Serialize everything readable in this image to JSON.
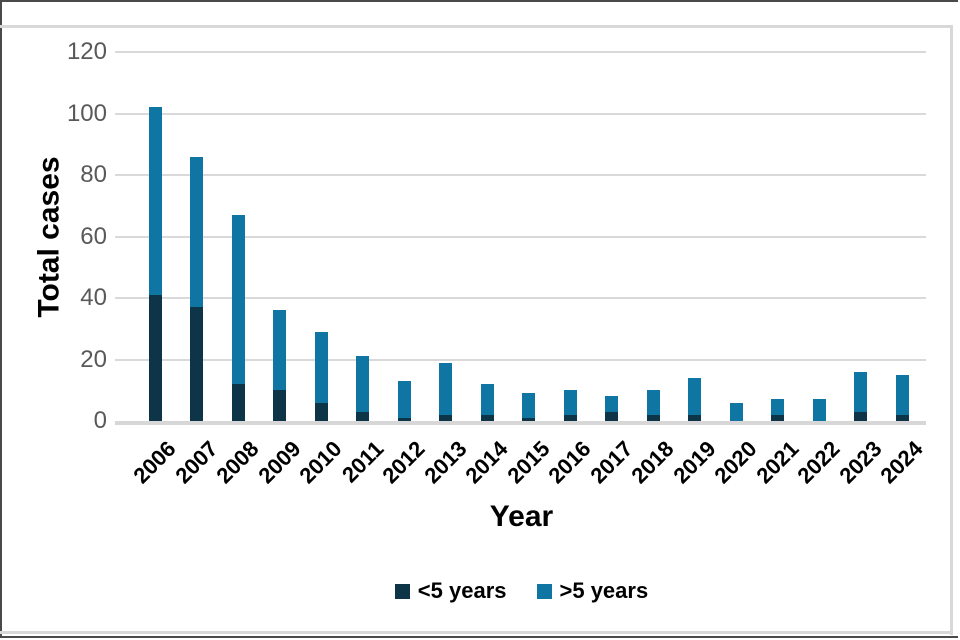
{
  "chart_data": {
    "type": "bar",
    "stacked": true,
    "xlabel": "Year",
    "ylabel": "Total cases",
    "categories": [
      "2006",
      "2007",
      "2008",
      "2009",
      "2010",
      "2011",
      "2012",
      "2013",
      "2014",
      "2015",
      "2016",
      "2017",
      "2018",
      "2019",
      "2020",
      "2021",
      "2022",
      "2023",
      "2024"
    ],
    "series": [
      {
        "name": "<5 years",
        "color": "#0e3448",
        "values": [
          41,
          37,
          12,
          10,
          6,
          3,
          1,
          2,
          2,
          1,
          2,
          3,
          2,
          2,
          0,
          2,
          0,
          3,
          2
        ]
      },
      {
        "name": ">5 years",
        "color": "#0f76a3",
        "values": [
          61,
          49,
          55,
          26,
          23,
          18,
          12,
          17,
          10,
          8,
          8,
          5,
          8,
          12,
          6,
          5,
          7,
          13,
          13
        ]
      }
    ],
    "totals": [
      102,
      86,
      67,
      36,
      29,
      21,
      13,
      19,
      12,
      9,
      10,
      8,
      10,
      14,
      6,
      7,
      7,
      16,
      15
    ],
    "ylim": [
      0,
      120
    ],
    "yticks": [
      0,
      20,
      40,
      60,
      80,
      100,
      120
    ],
    "grid": true,
    "legend_position": "bottom"
  },
  "colors": {
    "gridline": "#d9d9d9",
    "axis_line": "#d7d7d7",
    "tick_text": "#595959",
    "text": "#000000",
    "frame": "#d8d8d8"
  }
}
